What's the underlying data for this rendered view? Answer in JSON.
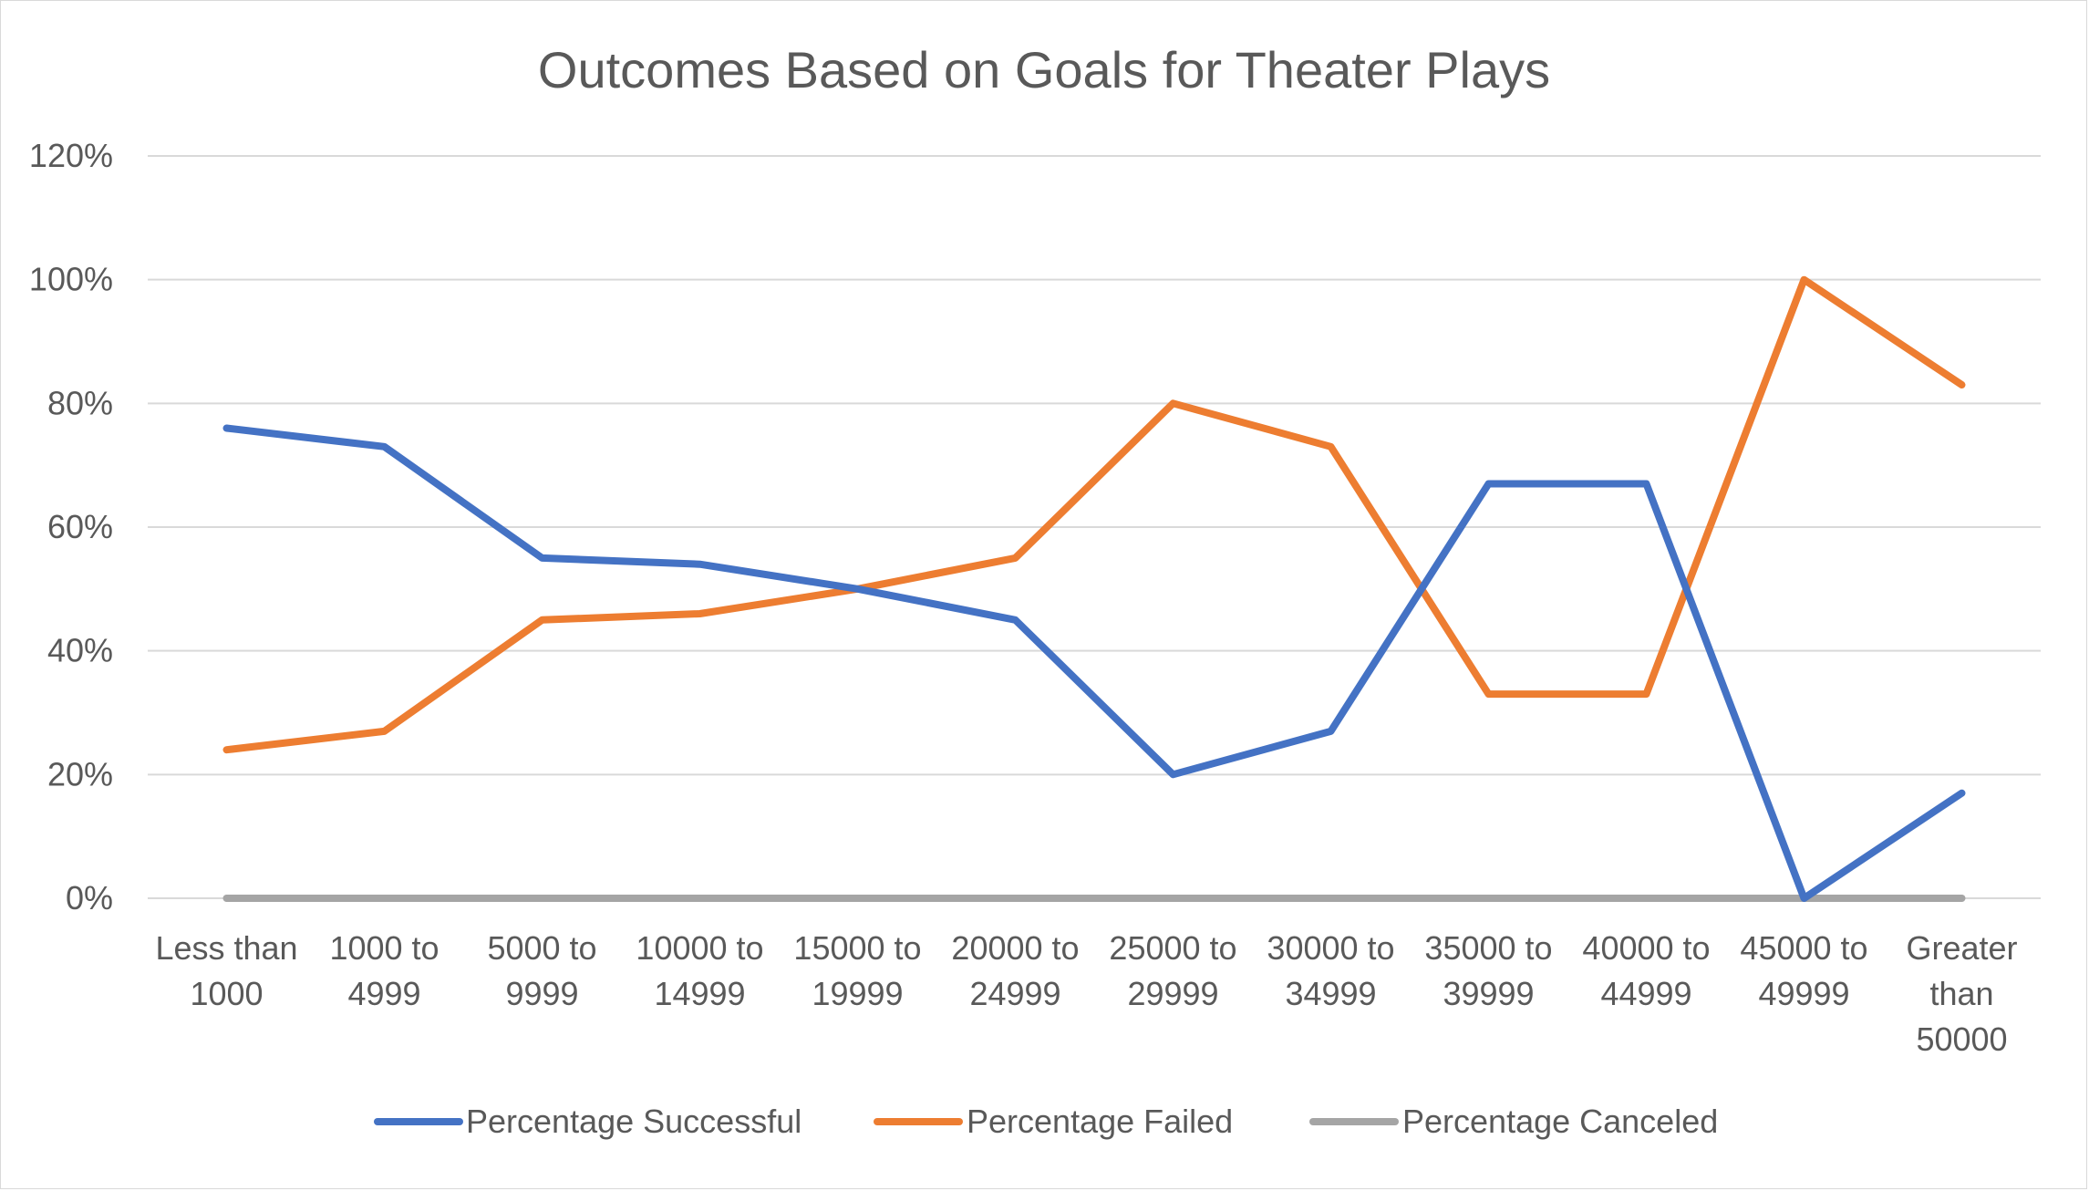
{
  "chart_data": {
    "type": "line",
    "title": "Outcomes Based on Goals for Theater Plays",
    "xlabel": "",
    "ylabel": "",
    "categories": [
      [
        "Less than",
        "1000"
      ],
      [
        "1000 to",
        "4999"
      ],
      [
        "5000 to",
        "9999"
      ],
      [
        "10000 to",
        "14999"
      ],
      [
        "15000 to",
        "19999"
      ],
      [
        "20000 to",
        "24999"
      ],
      [
        "25000 to",
        "29999"
      ],
      [
        "30000 to",
        "34999"
      ],
      [
        "35000 to",
        "39999"
      ],
      [
        "40000 to",
        "44999"
      ],
      [
        "45000 to",
        "49999"
      ],
      [
        "Greater",
        "than",
        "50000"
      ]
    ],
    "y_ticks": [
      "0%",
      "20%",
      "40%",
      "60%",
      "80%",
      "100%",
      "120%"
    ],
    "ylim": [
      0,
      120
    ],
    "grid": true,
    "legend_position": "bottom",
    "series": [
      {
        "name": "Percentage Successful",
        "color": "#4472c4",
        "values": [
          76,
          73,
          55,
          54,
          50,
          45,
          20,
          27,
          67,
          67,
          0,
          17
        ]
      },
      {
        "name": "Percentage Failed",
        "color": "#ed7d31",
        "values": [
          24,
          27,
          45,
          46,
          50,
          55,
          80,
          73,
          33,
          33,
          100,
          83
        ]
      },
      {
        "name": "Percentage Canceled",
        "color": "#a5a5a5",
        "values": [
          0,
          0,
          0,
          0,
          0,
          0,
          0,
          0,
          0,
          0,
          0,
          0
        ]
      }
    ]
  }
}
